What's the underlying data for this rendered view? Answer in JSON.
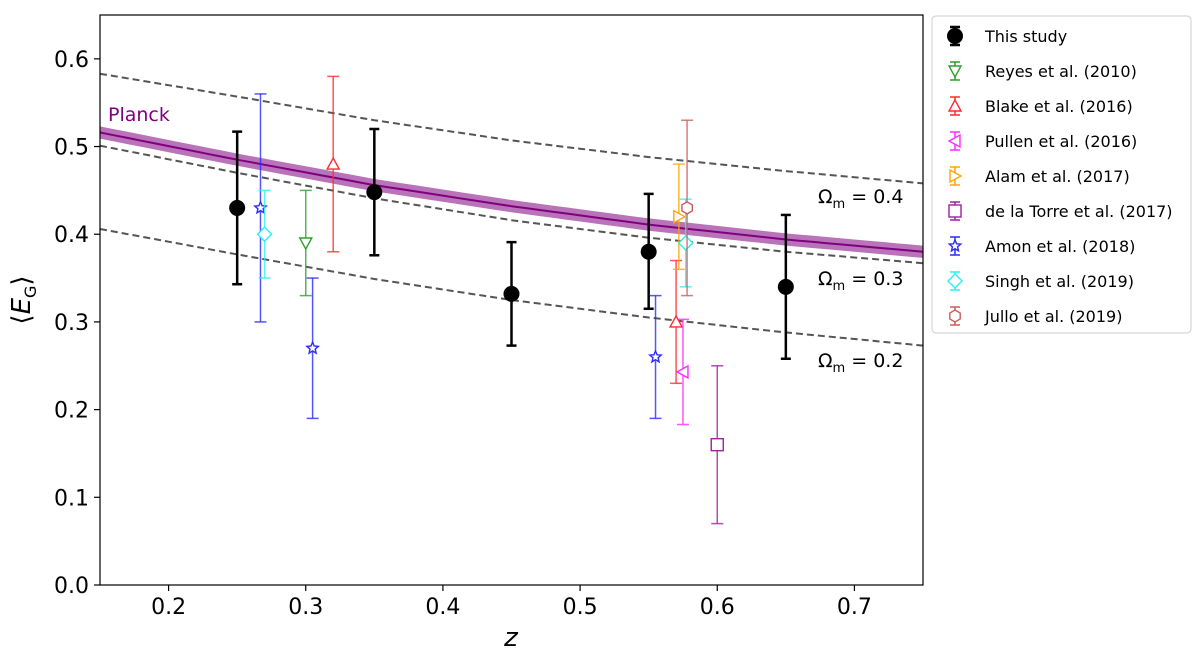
{
  "chart_data": {
    "type": "scatter",
    "xlabel": "z",
    "ylabel": "⟨E_G⟩",
    "xlim": [
      0.15,
      0.75
    ],
    "ylim": [
      0.0,
      0.65
    ],
    "x_ticks": [
      "0.2",
      "0.3",
      "0.4",
      "0.5",
      "0.6",
      "0.7"
    ],
    "y_ticks": [
      "0.0",
      "0.1",
      "0.2",
      "0.3",
      "0.4",
      "0.5",
      "0.6"
    ],
    "planck": {
      "label": "Planck",
      "color": "#800080",
      "band_halfwidth": 0.007,
      "values": [
        [
          0.15,
          0.516
        ],
        [
          0.25,
          0.485
        ],
        [
          0.35,
          0.456
        ],
        [
          0.45,
          0.432
        ],
        [
          0.55,
          0.411
        ],
        [
          0.65,
          0.394
        ],
        [
          0.75,
          0.38
        ]
      ]
    },
    "omega_curves": [
      {
        "label": "Ω",
        "sub": "m",
        "rest": " = 0.4",
        "values": [
          [
            0.15,
            0.583
          ],
          [
            0.25,
            0.557
          ],
          [
            0.35,
            0.53
          ],
          [
            0.45,
            0.507
          ],
          [
            0.55,
            0.488
          ],
          [
            0.65,
            0.472
          ],
          [
            0.75,
            0.458
          ]
        ]
      },
      {
        "label": "Ω",
        "sub": "m",
        "rest": " = 0.3",
        "values": [
          [
            0.15,
            0.501
          ],
          [
            0.25,
            0.47
          ],
          [
            0.35,
            0.441
          ],
          [
            0.45,
            0.416
          ],
          [
            0.55,
            0.396
          ],
          [
            0.65,
            0.38
          ],
          [
            0.75,
            0.367
          ]
        ]
      },
      {
        "label": "Ω",
        "sub": "m",
        "rest": " = 0.2",
        "values": [
          [
            0.15,
            0.406
          ],
          [
            0.25,
            0.377
          ],
          [
            0.35,
            0.349
          ],
          [
            0.45,
            0.325
          ],
          [
            0.55,
            0.305
          ],
          [
            0.65,
            0.288
          ],
          [
            0.75,
            0.273
          ]
        ]
      }
    ],
    "series": [
      {
        "name": "This study",
        "color": "#000000",
        "marker": "circle-filled",
        "points": [
          {
            "x": 0.25,
            "y": 0.43,
            "lo": 0.343,
            "hi": 0.517
          },
          {
            "x": 0.35,
            "y": 0.448,
            "lo": 0.376,
            "hi": 0.52
          },
          {
            "x": 0.45,
            "y": 0.332,
            "lo": 0.273,
            "hi": 0.391
          },
          {
            "x": 0.55,
            "y": 0.38,
            "lo": 0.315,
            "hi": 0.446
          },
          {
            "x": 0.65,
            "y": 0.34,
            "lo": 0.258,
            "hi": 0.422
          }
        ]
      },
      {
        "name": "Reyes et al. (2010)",
        "color": "#2ca02c",
        "marker": "triangle-down",
        "points": [
          {
            "x": 0.3,
            "y": 0.39,
            "lo": 0.33,
            "hi": 0.45
          }
        ]
      },
      {
        "name": "Blake et al. (2016)",
        "color": "#ff2a2a",
        "marker": "triangle-up",
        "points": [
          {
            "x": 0.32,
            "y": 0.48,
            "lo": 0.38,
            "hi": 0.58
          },
          {
            "x": 0.57,
            "y": 0.3,
            "lo": 0.23,
            "hi": 0.37
          }
        ]
      },
      {
        "name": "Pullen et al. (2016)",
        "color": "#ff2aff",
        "marker": "triangle-left",
        "points": [
          {
            "x": 0.575,
            "y": 0.243,
            "lo": 0.183,
            "hi": 0.303
          }
        ]
      },
      {
        "name": "Alam et al. (2017)",
        "color": "#ffa500",
        "marker": "triangle-right",
        "points": [
          {
            "x": 0.572,
            "y": 0.42,
            "lo": 0.36,
            "hi": 0.48
          }
        ]
      },
      {
        "name": "de la Torre et al. (2017)",
        "color": "#a020a0",
        "marker": "square",
        "points": [
          {
            "x": 0.6,
            "y": 0.16,
            "lo": 0.07,
            "hi": 0.25
          }
        ]
      },
      {
        "name": "Amon et al. (2018)",
        "color": "#2a2aff",
        "marker": "star",
        "points": [
          {
            "x": 0.267,
            "y": 0.43,
            "lo": 0.3,
            "hi": 0.56
          },
          {
            "x": 0.305,
            "y": 0.27,
            "lo": 0.19,
            "hi": 0.35
          },
          {
            "x": 0.555,
            "y": 0.26,
            "lo": 0.19,
            "hi": 0.33
          }
        ]
      },
      {
        "name": "Singh et al. (2019)",
        "color": "#2af0f0",
        "marker": "diamond",
        "points": [
          {
            "x": 0.27,
            "y": 0.4,
            "lo": 0.35,
            "hi": 0.45
          },
          {
            "x": 0.577,
            "y": 0.39,
            "lo": 0.34,
            "hi": 0.44
          }
        ]
      },
      {
        "name": "Jullo et al. (2019)",
        "color": "#cd5c5c",
        "marker": "hexagon",
        "points": [
          {
            "x": 0.578,
            "y": 0.43,
            "lo": 0.33,
            "hi": 0.53
          }
        ]
      }
    ]
  }
}
